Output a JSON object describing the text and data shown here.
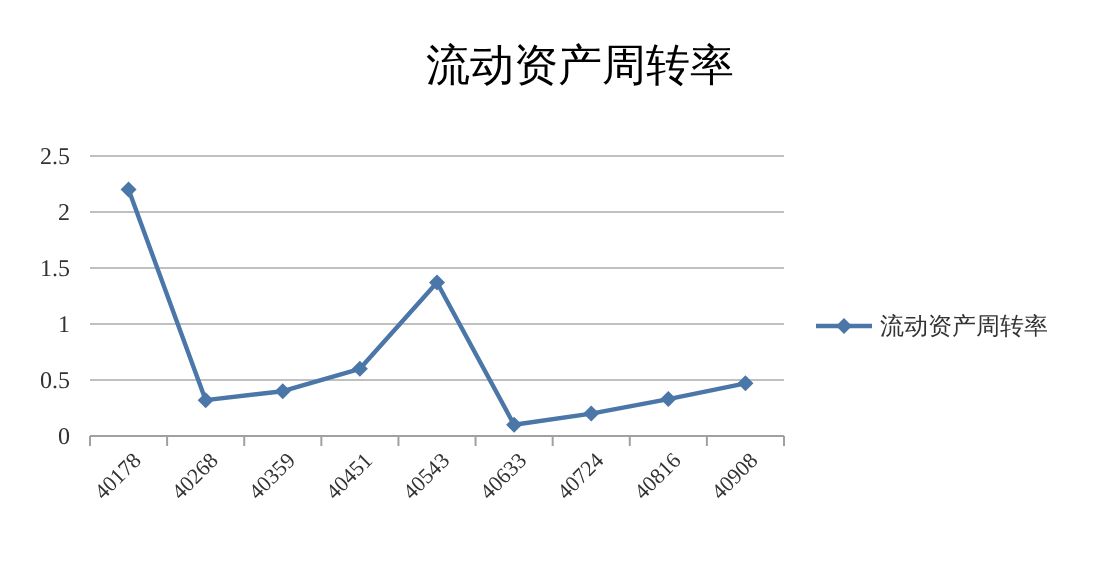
{
  "chart_data": {
    "type": "line",
    "title": "流动资产周转率",
    "categories": [
      "40178",
      "40268",
      "40359",
      "40451",
      "40543",
      "40633",
      "40724",
      "40816",
      "40908"
    ],
    "series": [
      {
        "name": "流动资产周转率",
        "color": "#4a76a8",
        "values": [
          2.2,
          0.32,
          0.4,
          0.6,
          1.37,
          0.1,
          0.2,
          0.33,
          0.47
        ]
      }
    ],
    "ylim": [
      0,
      2.5
    ],
    "yticks": [
      0,
      0.5,
      1,
      1.5,
      2,
      2.5
    ],
    "grid": "y",
    "legend": "right",
    "marker": "diamond",
    "line_style": "solid"
  }
}
